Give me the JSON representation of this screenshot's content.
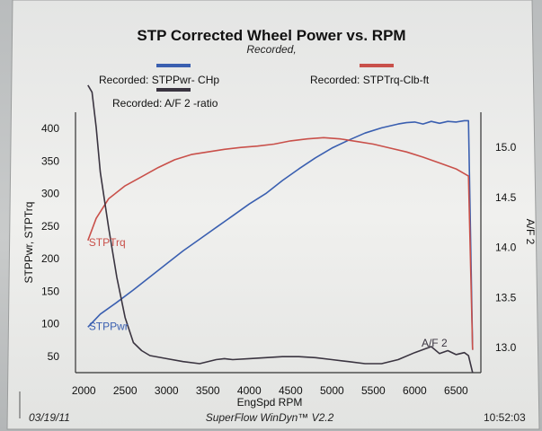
{
  "title": "STP Corrected Wheel Power vs. RPM",
  "subtitle": "Recorded,",
  "legend": [
    {
      "label": "Recorded: STPPwr- CHp",
      "color": "#3a5fb0"
    },
    {
      "label": "Recorded: STPTrq-Clb-ft",
      "color": "#c9504a"
    },
    {
      "label": "Recorded: A/F 2 -ratio",
      "color": "#3a3440"
    }
  ],
  "footer": {
    "date": "03/19/11",
    "software": "SuperFlow WinDyn™ V2.2",
    "time": "10:52:03"
  },
  "chart_data": {
    "type": "line",
    "xlabel": "EngSpd  RPM",
    "ylabel_left": "STPPwr, STPTrq",
    "ylabel_right": "A/F 2",
    "xlim": [
      1900,
      6800
    ],
    "ylim_left": [
      25,
      425
    ],
    "ylim_right": [
      12.75,
      15.35
    ],
    "x_ticks": [
      2000,
      2500,
      3000,
      3500,
      4000,
      4500,
      5000,
      5500,
      6000,
      6500
    ],
    "y_ticks_left": [
      50,
      100,
      150,
      200,
      250,
      300,
      350,
      400
    ],
    "y_ticks_right": [
      "13.0",
      "13.5",
      "14.0",
      "14.5",
      "15.0"
    ],
    "grid": false,
    "series": [
      {
        "name": "STPPwr",
        "axis": "left",
        "color": "#3a5fb0",
        "label": "STPPwr",
        "x": [
          2050,
          2200,
          2400,
          2600,
          2800,
          3000,
          3200,
          3400,
          3600,
          3800,
          4000,
          4200,
          4400,
          4600,
          4800,
          5000,
          5200,
          5400,
          5600,
          5800,
          5900,
          6000,
          6100,
          6200,
          6300,
          6400,
          6500,
          6600,
          6650,
          6700
        ],
        "y": [
          95,
          115,
          133,
          152,
          172,
          192,
          212,
          230,
          248,
          266,
          284,
          300,
          320,
          338,
          355,
          370,
          382,
          393,
          401,
          407,
          409,
          410,
          407,
          411,
          408,
          411,
          410,
          412,
          412,
          60
        ]
      },
      {
        "name": "STPTrq",
        "axis": "left",
        "color": "#c9504a",
        "label": "STPTrq",
        "x": [
          2050,
          2150,
          2300,
          2500,
          2700,
          2900,
          3100,
          3300,
          3500,
          3700,
          3900,
          4100,
          4300,
          4500,
          4700,
          4900,
          5100,
          5300,
          5500,
          5700,
          5900,
          6100,
          6300,
          6500,
          6650,
          6700
        ],
        "y": [
          228,
          262,
          292,
          312,
          326,
          340,
          352,
          360,
          364,
          368,
          371,
          373,
          376,
          381,
          384,
          386,
          384,
          380,
          376,
          370,
          364,
          356,
          347,
          338,
          327,
          60
        ]
      },
      {
        "name": "A/F 2",
        "axis": "right",
        "color": "#3a3440",
        "label": "A/F 2",
        "x": [
          2050,
          2100,
          2150,
          2200,
          2300,
          2400,
          2500,
          2600,
          2700,
          2800,
          3000,
          3200,
          3400,
          3600,
          3700,
          3800,
          4000,
          4200,
          4400,
          4600,
          4800,
          5000,
          5200,
          5400,
          5600,
          5800,
          6000,
          6200,
          6300,
          6400,
          6500,
          6600,
          6650,
          6700
        ],
        "y": [
          15.62,
          15.55,
          15.2,
          14.75,
          14.2,
          13.7,
          13.3,
          13.05,
          12.97,
          12.92,
          12.89,
          12.86,
          12.84,
          12.88,
          12.89,
          12.88,
          12.89,
          12.9,
          12.91,
          12.91,
          12.9,
          12.88,
          12.86,
          12.84,
          12.84,
          12.88,
          12.95,
          13.01,
          12.94,
          12.97,
          12.93,
          12.95,
          12.92,
          12.75
        ]
      }
    ]
  }
}
